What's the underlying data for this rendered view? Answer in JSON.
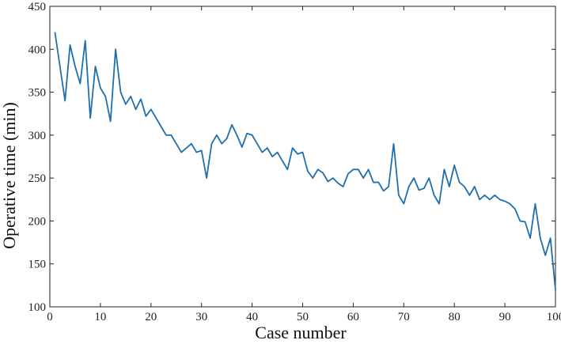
{
  "chart_data": {
    "type": "line",
    "xlabel": "Case number",
    "ylabel": "Operative time (min)",
    "xlim": [
      0,
      100
    ],
    "ylim": [
      100,
      450
    ],
    "xticks": [
      0,
      10,
      20,
      30,
      40,
      50,
      60,
      70,
      80,
      90,
      100
    ],
    "yticks": [
      100,
      150,
      200,
      250,
      300,
      350,
      400,
      450
    ],
    "grid": false,
    "line_color": "#1f6fad",
    "series": [
      {
        "x": [
          1,
          2,
          3,
          4,
          5,
          6,
          7,
          8,
          9,
          10,
          11,
          12,
          13,
          14,
          15,
          16,
          17,
          18,
          19,
          20,
          21,
          22,
          23,
          24,
          25,
          26,
          27,
          28,
          29,
          30,
          31,
          32,
          33,
          34,
          35,
          36,
          37,
          38,
          39,
          40,
          41,
          42,
          43,
          44,
          45,
          46,
          47,
          48,
          49,
          50,
          51,
          52,
          53,
          54,
          55,
          56,
          57,
          58,
          59,
          60,
          61,
          62,
          63,
          64,
          65,
          66,
          67,
          68,
          69,
          70,
          71,
          72,
          73,
          74,
          75,
          76,
          77,
          78,
          79,
          80,
          81,
          82,
          83,
          84,
          85,
          86,
          87,
          88,
          89,
          90,
          91,
          92,
          93,
          94,
          95,
          96,
          97,
          98,
          99,
          100
        ],
        "values": [
          420,
          380,
          340,
          405,
          380,
          360,
          410,
          320,
          380,
          355,
          345,
          316,
          400,
          350,
          336,
          345,
          330,
          342,
          322,
          330,
          320,
          310,
          300,
          300,
          290,
          280,
          285,
          290,
          280,
          282,
          250,
          290,
          300,
          290,
          296,
          312,
          300,
          286,
          302,
          300,
          290,
          280,
          285,
          275,
          280,
          270,
          260,
          285,
          278,
          280,
          258,
          250,
          260,
          256,
          246,
          250,
          244,
          240,
          255,
          260,
          260,
          250,
          260,
          245,
          245,
          235,
          240,
          290,
          230,
          220,
          240,
          250,
          236,
          238,
          250,
          230,
          220,
          260,
          240,
          265,
          245,
          240,
          230,
          240,
          225,
          230,
          225,
          230,
          225,
          223,
          220,
          214,
          200,
          199,
          180,
          220,
          180,
          160,
          180,
          120
        ]
      }
    ]
  }
}
